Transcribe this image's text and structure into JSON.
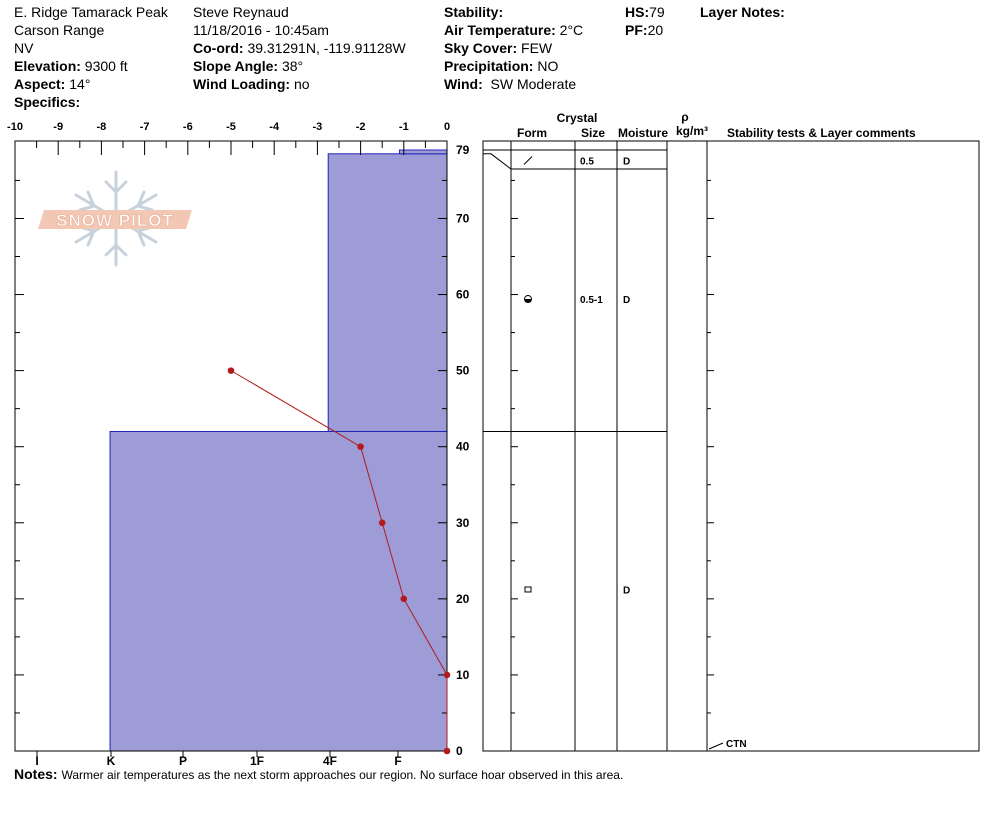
{
  "header": {
    "location": "E. Ridge Tamarack Peak",
    "range": "Carson Range",
    "state": "NV",
    "elevation_label": "Elevation:",
    "elevation_value": "9300 ft",
    "aspect_label": "Aspect:",
    "aspect_value": "14°",
    "specifics_label": "Specifics:",
    "observer": "Steve Reynaud",
    "datetime": "11/18/2016 - 10:45am",
    "coord_label": "Co-ord:",
    "coord_value": "39.31291N, -119.91128W",
    "slope_label": "Slope Angle:",
    "slope_value": "38°",
    "wind_loading_label": "Wind Loading:",
    "wind_loading_value": "no",
    "stability_label": "Stability:",
    "air_temp_label": "Air Temperature:",
    "air_temp_value": "2°C",
    "sky_cover_label": "Sky Cover:",
    "sky_cover_value": "FEW",
    "precip_label": "Precipitation:",
    "precip_value": "NO",
    "wind_label": "Wind:",
    "wind_value": "SW Moderate",
    "hs_label": "HS:",
    "hs_value": "79",
    "pf_label": "PF:",
    "pf_value": "20",
    "layer_notes_label": "Layer Notes:"
  },
  "logo": {
    "text": "SNOW PILOT"
  },
  "notes": {
    "label": "Notes:",
    "text": "Warmer air temperatures as the next storm approaches our region.  No surface hoar observed in this area."
  },
  "chart_data": {
    "type": "snow-profile",
    "temperature_axis": {
      "ticks": [
        "-10",
        "-9",
        "-8",
        "-7",
        "-6",
        "-5",
        "-4",
        "-3",
        "-2",
        "-1",
        "0"
      ],
      "range": [
        -10,
        0
      ]
    },
    "hardness_axis": {
      "ticks": [
        "I",
        "K",
        "P",
        "1F",
        "4F",
        "F"
      ]
    },
    "depth_axis": {
      "ticks": [
        "79",
        "70",
        "60",
        "50",
        "40",
        "30",
        "20",
        "10",
        "0"
      ],
      "range": [
        0,
        79
      ]
    },
    "hardness_layers": [
      {
        "bottom": 0,
        "top": 42,
        "hardness_temp_equiv": -7.8
      },
      {
        "bottom": 42,
        "top": 78.5,
        "hardness_temp_equiv": -2.75
      },
      {
        "bottom": 78.5,
        "top": 79,
        "hardness_temp_equiv": -1.1
      }
    ],
    "temperature_profile": [
      {
        "depth": 50,
        "temp": -5
      },
      {
        "depth": 40,
        "temp": -2
      },
      {
        "depth": 30,
        "temp": -1.5
      },
      {
        "depth": 20,
        "temp": -1
      },
      {
        "depth": 10,
        "temp": 0
      },
      {
        "depth": 0,
        "temp": 0
      }
    ],
    "table_headers": {
      "crystal": "Crystal",
      "form": "Form",
      "size": "Size",
      "moisture": "Moisture",
      "rho": "ρ",
      "density_unit": "kg/m³",
      "stability": "Stability tests & Layer comments"
    },
    "layers": [
      {
        "top": 79,
        "bottom": 76.5,
        "form_icon": "slash-icon",
        "size": "0.5",
        "moisture": "D"
      },
      {
        "top": 76.5,
        "bottom": 42,
        "form_icon": "rounded-grain-icon",
        "size": "0.5-1",
        "moisture": "D"
      },
      {
        "top": 42,
        "bottom": 0,
        "form_icon": "melt-form-icon",
        "size": "",
        "moisture": "D"
      }
    ],
    "stability_tests": [
      {
        "depth": 0,
        "label": "CTN"
      }
    ]
  }
}
